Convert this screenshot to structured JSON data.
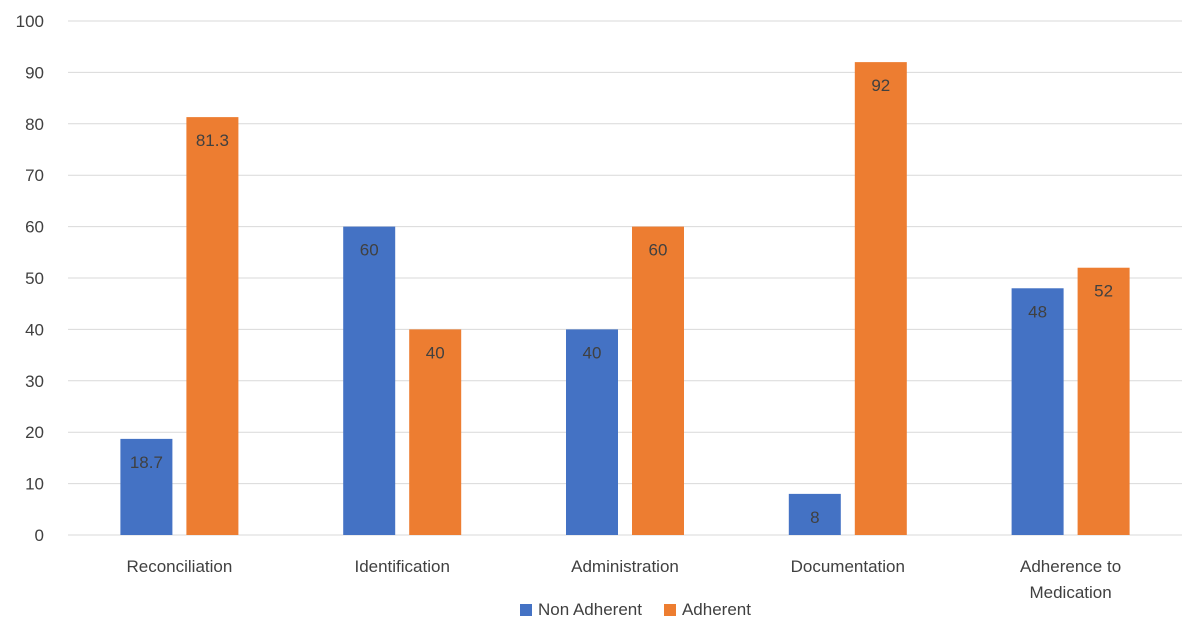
{
  "chart_data": {
    "type": "bar",
    "title": "",
    "xlabel": "",
    "ylabel": "",
    "ylim": [
      0,
      100
    ],
    "yticks": [
      0,
      10,
      20,
      30,
      40,
      50,
      60,
      70,
      80,
      90,
      100
    ],
    "grid": true,
    "legend_position": "bottom",
    "categories": [
      "Reconciliation",
      "Identification",
      "Administration",
      "Documentation",
      "Adherence to Medication"
    ],
    "category_lines": [
      [
        "Reconciliation"
      ],
      [
        "Identification"
      ],
      [
        "Administration"
      ],
      [
        "Documentation"
      ],
      [
        "Adherence to",
        "Medication"
      ]
    ],
    "series": [
      {
        "name": "Non Adherent",
        "color": "#4472C4",
        "values": [
          18.7,
          60,
          40,
          8,
          48
        ]
      },
      {
        "name": "Adherent",
        "color": "#ED7D31",
        "values": [
          81.3,
          40,
          60,
          92,
          52
        ]
      }
    ]
  }
}
